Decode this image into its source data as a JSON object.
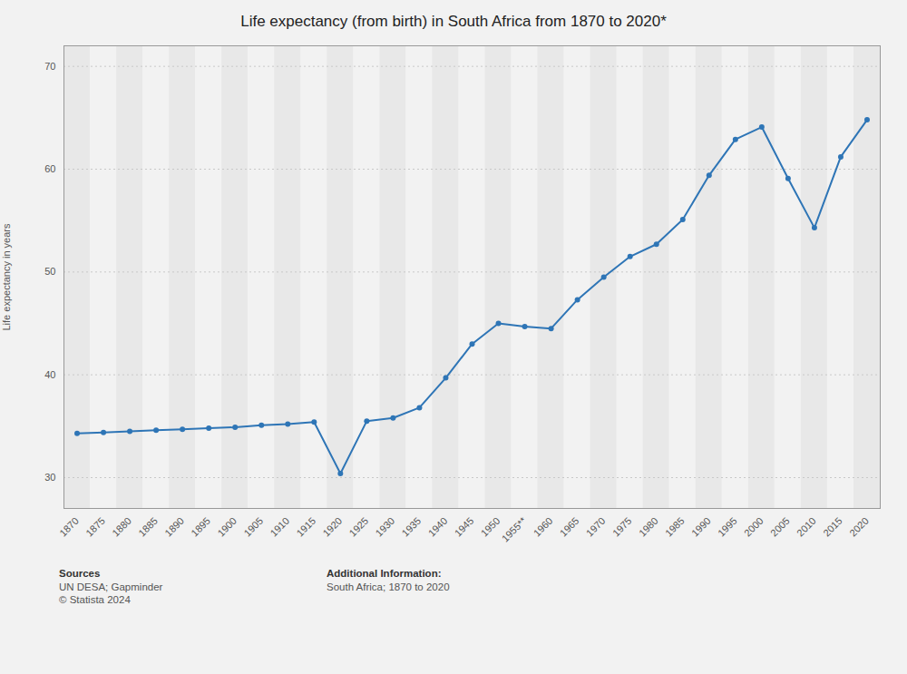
{
  "chart_data": {
    "type": "line",
    "title": "Life expectancy (from birth) in South Africa from 1870 to 2020*",
    "ylabel": "Life expectancy in years",
    "x": [
      1870,
      1875,
      1880,
      1885,
      1890,
      1895,
      1900,
      1905,
      1910,
      1915,
      1920,
      1925,
      1930,
      1935,
      1940,
      1945,
      1950,
      1955,
      1960,
      1965,
      1970,
      1975,
      1980,
      1985,
      1990,
      1995,
      2000,
      2005,
      2010,
      2015,
      2020
    ],
    "values": [
      34.3,
      34.4,
      34.5,
      34.6,
      34.7,
      34.8,
      34.9,
      35.1,
      35.2,
      35.4,
      30.4,
      35.5,
      35.8,
      36.8,
      39.7,
      43.0,
      45.0,
      44.7,
      44.5,
      47.3,
      49.5,
      51.5,
      52.7,
      55.1,
      59.4,
      62.9,
      64.1,
      59.1,
      54.3,
      61.2,
      64.8
    ],
    "color": "#2e75b6",
    "marker": "circle",
    "xlim": [
      1867.5,
      2022.5
    ],
    "xticks": [
      1870,
      1875,
      1880,
      1885,
      1890,
      1895,
      1900,
      1905,
      1910,
      1915,
      1920,
      1925,
      1930,
      1935,
      1940,
      1945,
      1950,
      {
        "value": 1955,
        "label": "1955**"
      },
      1960,
      1965,
      1970,
      1975,
      1980,
      1985,
      1990,
      1995,
      2000,
      2005,
      2010,
      2015,
      2020
    ],
    "ylim": [
      27,
      72
    ],
    "yticks": [
      30,
      40,
      50,
      60,
      70
    ],
    "grid": "y",
    "annotations": [
      [
        "Sources",
        "UN DESA; Gapminder",
        "© Statista 2024"
      ],
      [
        "Additional Information:",
        "South Africa; 1870 to 2020"
      ]
    ]
  }
}
